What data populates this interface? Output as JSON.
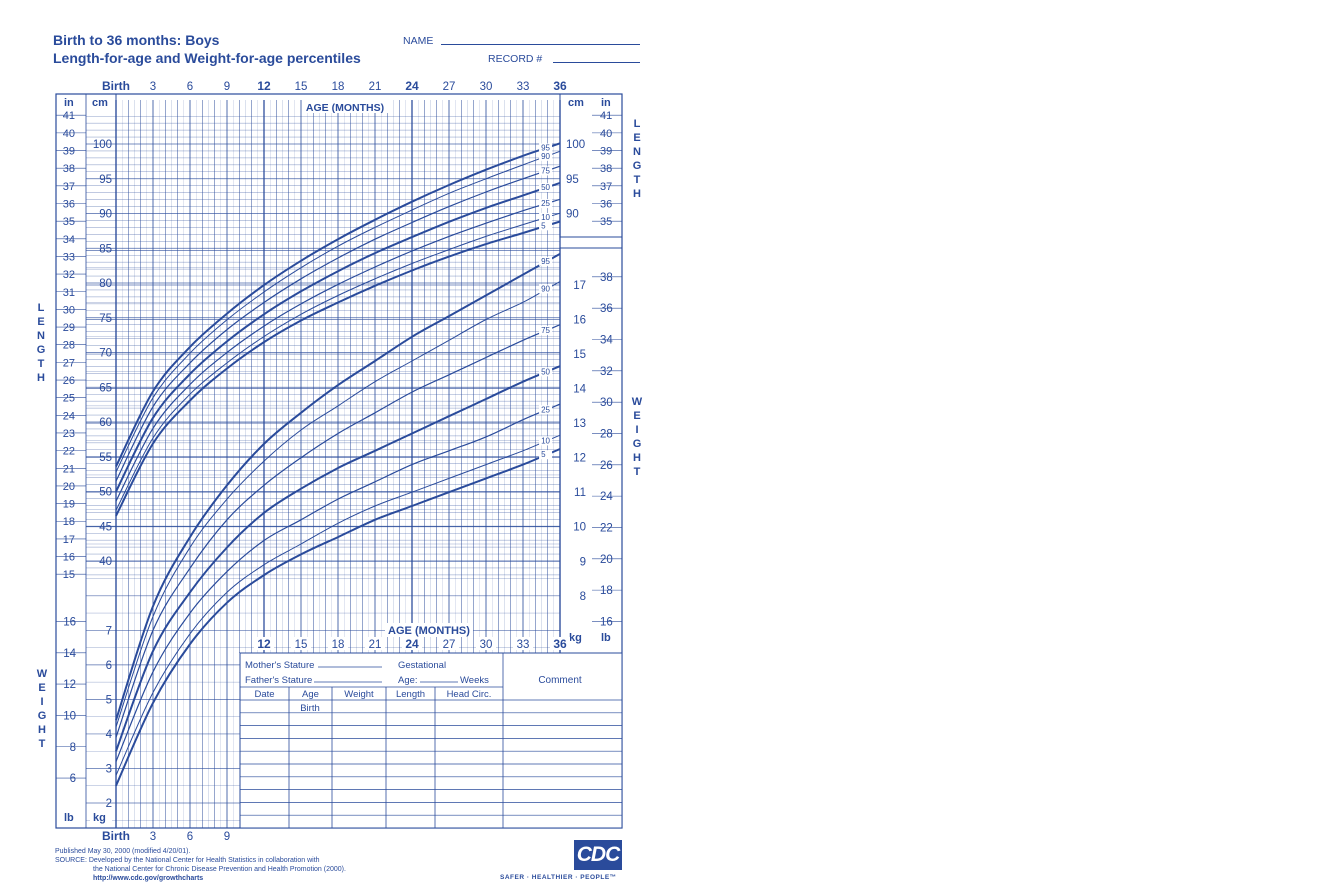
{
  "header": {
    "title_line1": "Birth to 36 months: Boys",
    "title_line2": "Length-for-age and Weight-for-age percentiles",
    "name_label": "NAME",
    "record_label": "RECORD #"
  },
  "chart_data": {
    "type": "line",
    "x_axis": {
      "label": "AGE (MONTHS)",
      "range": [
        0,
        36
      ],
      "ticks": [
        "Birth",
        "3",
        "6",
        "9",
        "12",
        "15",
        "18",
        "21",
        "24",
        "27",
        "30",
        "33",
        "36"
      ],
      "bold_ticks": [
        "Birth",
        "12",
        "24",
        "36"
      ]
    },
    "length_axis": {
      "label": "LENGTH",
      "cm_label": "cm",
      "in_label": "in",
      "cm_range": [
        38,
        104
      ],
      "cm_ticks": [
        40,
        45,
        50,
        55,
        60,
        65,
        70,
        75,
        80,
        85,
        90,
        95,
        100
      ],
      "in_ticks": [
        15,
        16,
        17,
        18,
        19,
        20,
        21,
        22,
        23,
        24,
        25,
        26,
        27,
        28,
        29,
        30,
        31,
        32,
        33,
        34,
        35,
        36,
        37,
        38,
        39,
        40,
        41
      ]
    },
    "weight_axis": {
      "label": "WEIGHT",
      "kg_label": "kg",
      "lb_label": "lb",
      "kg_range": [
        1.5,
        18
      ],
      "kg_ticks": [
        2,
        3,
        4,
        5,
        6,
        7,
        8,
        9,
        10,
        11,
        12,
        13,
        14,
        15,
        16,
        17
      ],
      "lb_ticks": [
        6,
        8,
        10,
        12,
        14,
        16,
        18,
        20,
        22,
        24,
        26,
        28,
        30,
        32,
        34,
        36,
        38
      ]
    },
    "percentiles": [
      "5",
      "10",
      "25",
      "50",
      "75",
      "90",
      "95"
    ],
    "length_series": [
      {
        "name": "5",
        "x": [
          0,
          3,
          6,
          9,
          12,
          15,
          18,
          21,
          24,
          27,
          30,
          33,
          35
        ],
        "values": [
          46.5,
          56.9,
          63.1,
          67.7,
          71.5,
          74.6,
          77.2,
          79.6,
          81.8,
          83.8,
          85.6,
          87.2,
          88.3
        ]
      },
      {
        "name": "10",
        "x": [
          0,
          3,
          6,
          9,
          12,
          15,
          18,
          21,
          24,
          27,
          30,
          33,
          35
        ],
        "values": [
          47.3,
          57.7,
          64.0,
          68.5,
          72.3,
          75.5,
          78.2,
          80.6,
          82.8,
          84.8,
          86.7,
          88.4,
          89.5
        ]
      },
      {
        "name": "25",
        "x": [
          0,
          3,
          6,
          9,
          12,
          15,
          18,
          21,
          24,
          27,
          30,
          33,
          35
        ],
        "values": [
          48.6,
          59.1,
          65.4,
          70.0,
          73.8,
          77.0,
          79.8,
          82.3,
          84.6,
          86.7,
          88.6,
          90.4,
          91.5
        ]
      },
      {
        "name": "50",
        "x": [
          0,
          3,
          6,
          9,
          12,
          15,
          18,
          21,
          24,
          27,
          30,
          33,
          35
        ],
        "values": [
          50.0,
          60.6,
          66.9,
          71.6,
          75.5,
          78.8,
          81.7,
          84.3,
          86.6,
          88.8,
          90.8,
          92.6,
          93.8
        ]
      },
      {
        "name": "75",
        "x": [
          0,
          3,
          6,
          9,
          12,
          15,
          18,
          21,
          24,
          27,
          30,
          33,
          35
        ],
        "values": [
          51.5,
          62.2,
          68.5,
          73.3,
          77.2,
          80.6,
          83.6,
          86.3,
          88.7,
          91.0,
          93.1,
          95.0,
          96.2
        ]
      },
      {
        "name": "90",
        "x": [
          0,
          3,
          6,
          9,
          12,
          15,
          18,
          21,
          24,
          27,
          30,
          33,
          35
        ],
        "values": [
          52.8,
          63.5,
          69.9,
          74.7,
          78.7,
          82.2,
          85.3,
          88.0,
          90.5,
          92.9,
          95.0,
          97.0,
          98.3
        ]
      },
      {
        "name": "95",
        "x": [
          0,
          3,
          6,
          9,
          12,
          15,
          18,
          21,
          24,
          27,
          30,
          33,
          35
        ],
        "values": [
          53.6,
          64.4,
          70.8,
          75.6,
          79.7,
          83.2,
          86.3,
          89.1,
          91.7,
          94.1,
          96.3,
          98.3,
          99.5
        ]
      }
    ],
    "weight_series": [
      {
        "name": "5",
        "x": [
          0,
          3,
          6,
          9,
          12,
          15,
          18,
          21,
          24,
          27,
          30,
          33,
          35
        ],
        "values": [
          2.5,
          4.9,
          6.6,
          7.8,
          8.6,
          9.2,
          9.7,
          10.2,
          10.6,
          11.0,
          11.4,
          11.8,
          12.1
        ]
      },
      {
        "name": "10",
        "x": [
          0,
          3,
          6,
          9,
          12,
          15,
          18,
          21,
          24,
          27,
          30,
          33,
          35
        ],
        "values": [
          2.8,
          5.2,
          6.9,
          8.1,
          8.9,
          9.5,
          10.1,
          10.6,
          11.0,
          11.4,
          11.8,
          12.2,
          12.5
        ]
      },
      {
        "name": "25",
        "x": [
          0,
          3,
          6,
          9,
          12,
          15,
          18,
          21,
          24,
          27,
          30,
          33,
          35
        ],
        "values": [
          3.2,
          5.8,
          7.5,
          8.7,
          9.6,
          10.2,
          10.8,
          11.3,
          11.8,
          12.2,
          12.6,
          13.1,
          13.4
        ]
      },
      {
        "name": "50",
        "x": [
          0,
          3,
          6,
          9,
          12,
          15,
          18,
          21,
          24,
          27,
          30,
          33,
          35
        ],
        "values": [
          3.5,
          6.4,
          8.1,
          9.4,
          10.4,
          11.1,
          11.7,
          12.2,
          12.7,
          13.2,
          13.7,
          14.2,
          14.5
        ]
      },
      {
        "name": "75",
        "x": [
          0,
          3,
          6,
          9,
          12,
          15,
          18,
          21,
          24,
          27,
          30,
          33,
          35
        ],
        "values": [
          3.9,
          7.0,
          8.8,
          10.2,
          11.2,
          12.0,
          12.7,
          13.3,
          13.9,
          14.4,
          14.9,
          15.4,
          15.7
        ]
      },
      {
        "name": "90",
        "x": [
          0,
          3,
          6,
          9,
          12,
          15,
          18,
          21,
          24,
          27,
          30,
          33,
          35
        ],
        "values": [
          4.2,
          7.4,
          9.4,
          10.8,
          11.9,
          12.8,
          13.5,
          14.2,
          14.8,
          15.4,
          16.0,
          16.5,
          16.9
        ]
      },
      {
        "name": "95",
        "x": [
          0,
          3,
          6,
          9,
          12,
          15,
          18,
          21,
          24,
          27,
          30,
          33,
          35
        ],
        "values": [
          4.4,
          7.7,
          9.7,
          11.2,
          12.4,
          13.3,
          14.1,
          14.8,
          15.5,
          16.1,
          16.7,
          17.3,
          17.7
        ]
      }
    ]
  },
  "record_table": {
    "mothers_stature": "Mother's Stature",
    "fathers_stature": "Father's Stature",
    "gestational": "Gestational",
    "age_label": "Age:",
    "weeks_label": "Weeks",
    "comment": "Comment",
    "columns": [
      "Date",
      "Age",
      "Weight",
      "Length",
      "Head Circ."
    ],
    "first_row_age": "Birth"
  },
  "footer": {
    "published": "Published May 30, 2000 (modified 4/20/01).",
    "source_line1": "SOURCE: Developed by the National Center for Health Statistics in collaboration with",
    "source_line2": "the National Center for Chronic Disease Prevention and Health Promotion (2000).",
    "url": "http://www.cdc.gov/growthcharts",
    "logo": "CDC",
    "tagline": "SAFER · HEALTHIER · PEOPLE™"
  },
  "colors": {
    "ink": "#2a4b9b",
    "background": "#ffffff"
  }
}
